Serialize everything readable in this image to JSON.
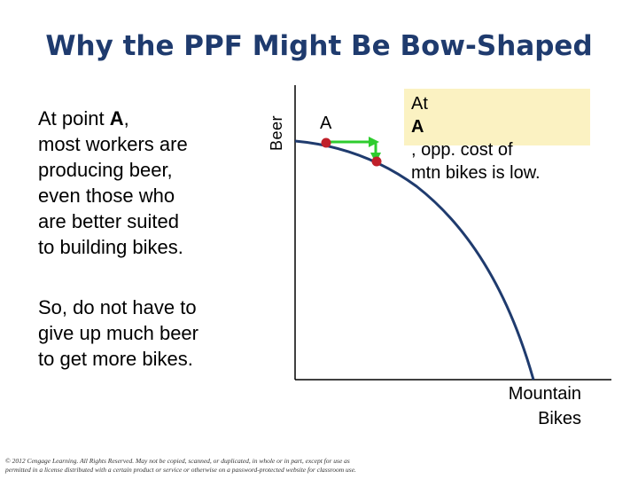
{
  "title": "Why the PPF Might Be Bow-Shaped",
  "left_text": {
    "para1_lines": [
      "At point ",
      "A",
      ",",
      "most workers are",
      "producing beer,",
      "even those who",
      "are better suited",
      "to building bikes."
    ],
    "para2_lines": [
      "So, do not have to",
      "give up much beer",
      "to get more bikes."
    ]
  },
  "axes": {
    "y_label": "Beer",
    "x_label_lines": [
      "Mountain",
      "Bikes"
    ]
  },
  "point_label": "A",
  "callout": {
    "line1_prefix": "At ",
    "line1_bold": "A",
    "line1_suffix": ", opp. cost of",
    "line2": "mtn bikes is low."
  },
  "footer_lines": [
    "© 2012 Cengage Learning. All Rights Reserved. May not be copied, scanned, or duplicated, in whole or in part, except for use as",
    "permitted in a license distributed with a certain product or service or otherwise on a password-protected website for classroom use."
  ],
  "colors": {
    "title": "#1f3b6e",
    "curve": "#1f3b6e",
    "point": "#c0202a",
    "arrow": "#2ecc2e",
    "callout_bg": "#fbf2c2"
  }
}
